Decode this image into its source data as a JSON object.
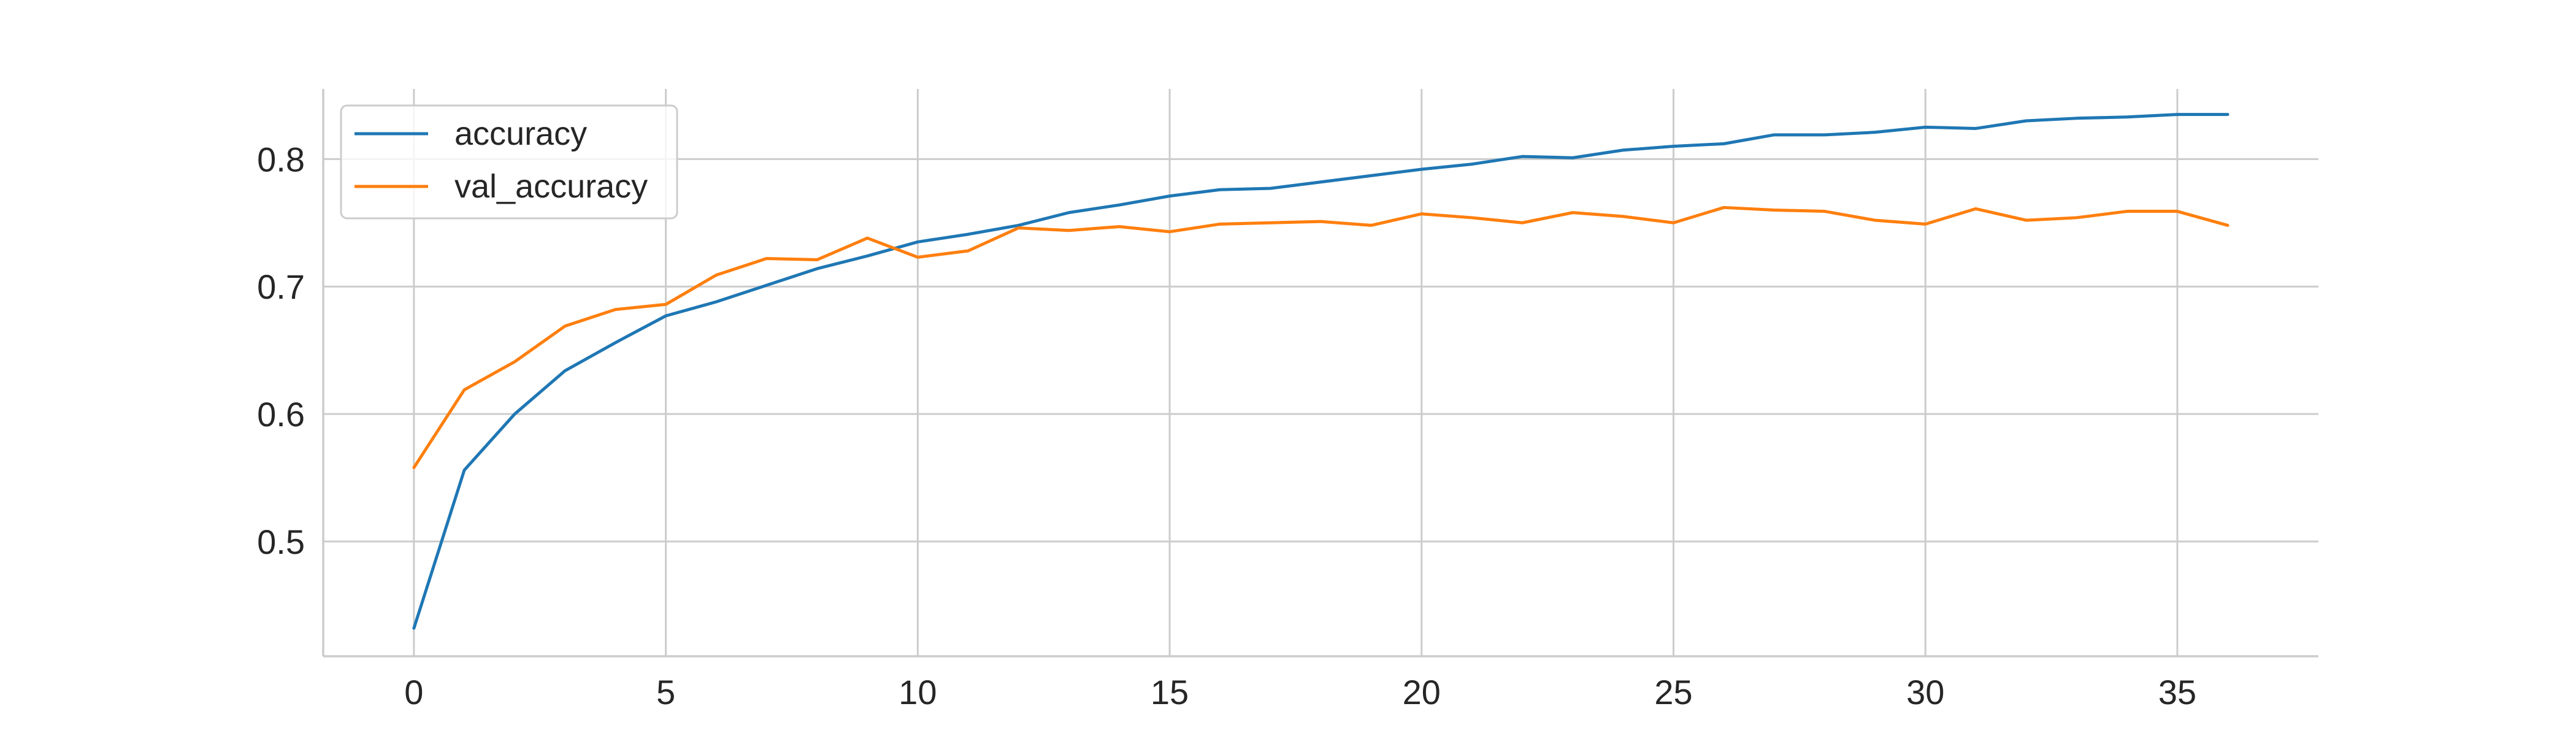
{
  "chart_data": {
    "type": "line",
    "title": "",
    "xlabel": "",
    "ylabel": "",
    "xlim": [
      -1.8,
      37.8
    ],
    "ylim": [
      0.41,
      0.855
    ],
    "xticks": [
      0,
      5,
      10,
      15,
      20,
      25,
      30,
      35
    ],
    "yticks": [
      0.5,
      0.6,
      0.7,
      0.8
    ],
    "xtick_labels": [
      "0",
      "5",
      "10",
      "15",
      "20",
      "25",
      "30",
      "35"
    ],
    "ytick_labels": [
      "0.5",
      "0.6",
      "0.7",
      "0.8"
    ],
    "grid": true,
    "legend_position": "upper-left",
    "x": [
      0,
      1,
      2,
      3,
      4,
      5,
      6,
      7,
      8,
      9,
      10,
      11,
      12,
      13,
      14,
      15,
      16,
      17,
      18,
      19,
      20,
      21,
      22,
      23,
      24,
      25,
      26,
      27,
      28,
      29,
      30,
      31,
      32,
      33,
      34,
      35,
      36
    ],
    "series": [
      {
        "name": "accuracy",
        "color": "#1f77b4",
        "values": [
          0.432,
          0.556,
          0.6,
          0.634,
          0.656,
          0.677,
          0.688,
          0.701,
          0.714,
          0.724,
          0.735,
          0.741,
          0.748,
          0.758,
          0.764,
          0.771,
          0.776,
          0.777,
          0.782,
          0.787,
          0.792,
          0.796,
          0.802,
          0.801,
          0.807,
          0.81,
          0.812,
          0.819,
          0.819,
          0.821,
          0.825,
          0.824,
          0.83,
          0.832,
          0.833,
          0.835,
          0.835
        ]
      },
      {
        "name": "val_accuracy",
        "color": "#ff7f0e",
        "values": [
          0.558,
          0.619,
          0.641,
          0.669,
          0.682,
          0.686,
          0.709,
          0.722,
          0.721,
          0.738,
          0.723,
          0.728,
          0.746,
          0.744,
          0.747,
          0.743,
          0.749,
          0.75,
          0.751,
          0.748,
          0.757,
          0.754,
          0.75,
          0.758,
          0.755,
          0.75,
          0.762,
          0.76,
          0.759,
          0.752,
          0.749,
          0.761,
          0.752,
          0.754,
          0.759,
          0.759,
          0.748
        ]
      }
    ]
  }
}
